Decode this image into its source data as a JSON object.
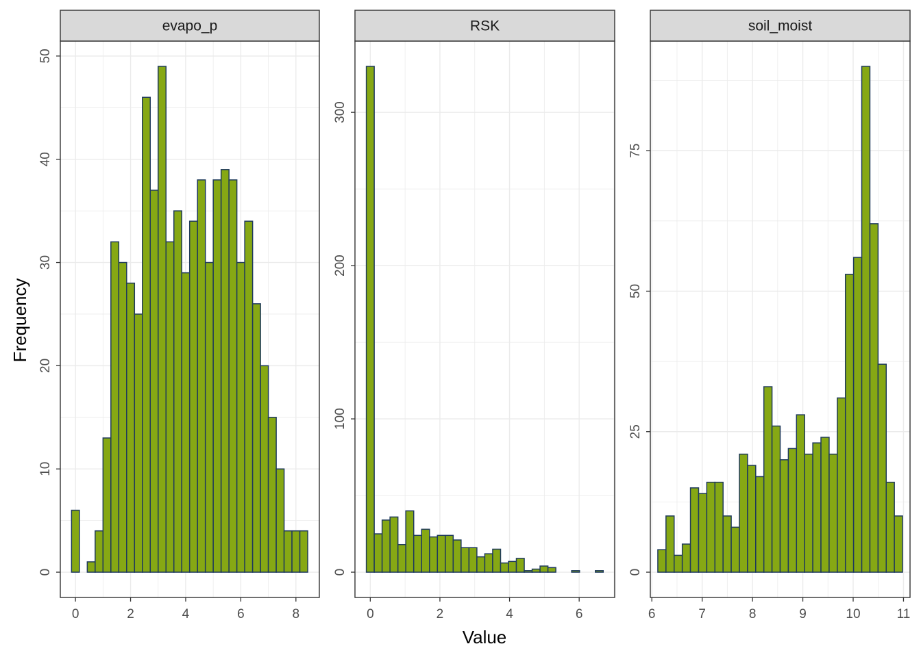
{
  "xlabel": "Value",
  "ylabel": "Frequency",
  "colors": {
    "bar_fill": "#86A814",
    "bar_stroke": "#1F3A5C",
    "strip_fill": "#D9D9D9",
    "panel_border": "#333333",
    "grid": "#EBEBEB"
  },
  "chart_data": [
    {
      "type": "bar",
      "title": "evapo_p",
      "bin_width": 0.2857,
      "x_centers": [
        0.0,
        0.2857,
        0.5714,
        0.8571,
        1.1429,
        1.4286,
        1.7143,
        2.0,
        2.2857,
        2.5714,
        2.8571,
        3.1429,
        3.4286,
        3.7143,
        4.0,
        4.2857,
        4.5714,
        4.8571,
        5.1429,
        5.4286,
        5.7143,
        6.0,
        6.2857,
        6.5714,
        6.8571,
        7.1429,
        7.4286,
        7.7143,
        8.0,
        8.2857
      ],
      "values": [
        6,
        0,
        1,
        4,
        13,
        32,
        30,
        28,
        25,
        46,
        37,
        49,
        32,
        35,
        29,
        34,
        38,
        30,
        38,
        39,
        38,
        30,
        34,
        26,
        20,
        15,
        10,
        4,
        4,
        4
      ],
      "xlim": [
        -0.55,
        8.85
      ],
      "ylim": [
        -2.45,
        51.45
      ],
      "x_ticks": [
        0,
        2,
        4,
        6,
        8
      ],
      "y_ticks": [
        0,
        10,
        20,
        30,
        40,
        50
      ]
    },
    {
      "type": "bar",
      "title": "RSK",
      "bin_width": 0.2268,
      "x_centers": [
        0.0,
        0.2268,
        0.4536,
        0.6804,
        0.9072,
        1.134,
        1.3608,
        1.5876,
        1.8144,
        2.0412,
        2.268,
        2.4948,
        2.7216,
        2.9484,
        3.1752,
        3.402,
        3.6288,
        3.8556,
        4.0824,
        4.3092,
        4.536,
        4.7628,
        4.9896,
        5.2164,
        5.4432,
        5.67,
        5.8968,
        6.1236,
        6.3504,
        6.5772
      ],
      "values": [
        330,
        25,
        34,
        36,
        18,
        40,
        24,
        28,
        23,
        24,
        24,
        21,
        16,
        16,
        10,
        12,
        15,
        6,
        7,
        9,
        1,
        2,
        4,
        3,
        0,
        0,
        1,
        0,
        0,
        1
      ],
      "xlim": [
        -0.44,
        7.02
      ],
      "ylim": [
        -16.5,
        346.5
      ],
      "x_ticks": [
        0,
        2,
        4,
        6
      ],
      "y_ticks": [
        0,
        100,
        200,
        300
      ]
    },
    {
      "type": "bar",
      "title": "soil_moist",
      "bin_width": 0.1621,
      "x_centers": [
        6.2,
        6.3621,
        6.5241,
        6.6862,
        6.8483,
        7.0103,
        7.1724,
        7.3345,
        7.4966,
        7.6586,
        7.8207,
        7.9828,
        8.1448,
        8.3069,
        8.469,
        8.631,
        8.7931,
        8.9552,
        9.1172,
        9.2793,
        9.4414,
        9.6034,
        9.7655,
        9.9276,
        10.0897,
        10.2517,
        10.4138,
        10.5759,
        10.7379,
        10.9
      ],
      "values": [
        4,
        10,
        3,
        5,
        15,
        14,
        16,
        16,
        10,
        8,
        21,
        19,
        17,
        33,
        26,
        20,
        22,
        28,
        21,
        23,
        24,
        21,
        31,
        53,
        56,
        90,
        62,
        37,
        16,
        10
      ],
      "xlim": [
        5.97,
        11.13
      ],
      "ylim": [
        -4.5,
        94.5
      ],
      "x_ticks": [
        6,
        7,
        8,
        9,
        10,
        11
      ],
      "y_ticks": [
        0,
        25,
        50,
        75
      ]
    }
  ]
}
